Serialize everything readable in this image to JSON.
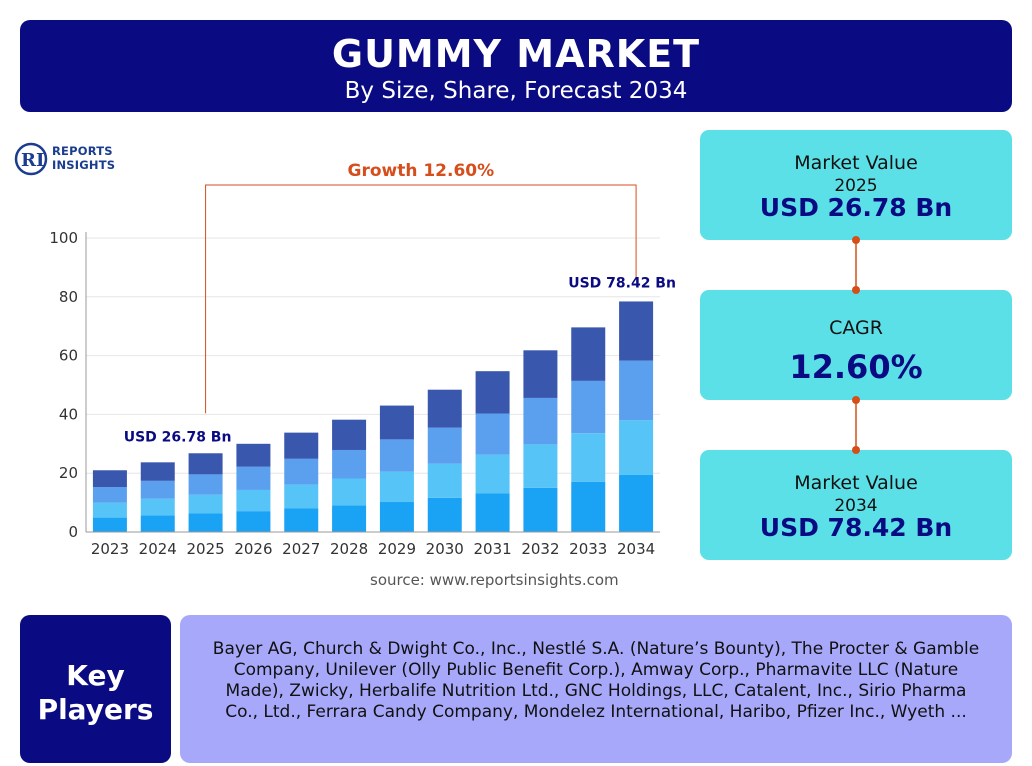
{
  "header": {
    "title": "GUMMY MARKET",
    "subtitle": "By Size, Share, Forecast 2034"
  },
  "logo": {
    "line1": "REPORTS",
    "line2": "INSIGHTS",
    "letters": "RI"
  },
  "chart_data": {
    "type": "bar",
    "stacked": true,
    "categories": [
      "2023",
      "2024",
      "2025",
      "2026",
      "2027",
      "2028",
      "2029",
      "2030",
      "2031",
      "2032",
      "2033",
      "2034"
    ],
    "totals": [
      21,
      23.7,
      26.78,
      30,
      33.8,
      38.2,
      43,
      48.4,
      54.7,
      61.8,
      69.6,
      78.42
    ],
    "series": [
      {
        "values": [
          4.9,
          5.6,
          6.3,
          7.1,
          8.0,
          9.0,
          10.2,
          11.6,
          13.2,
          15.0,
          17.1,
          19.4
        ],
        "color": "#1aa3f5"
      },
      {
        "values": [
          5.1,
          5.7,
          6.4,
          7.2,
          8.1,
          9.2,
          10.3,
          11.6,
          13.1,
          14.8,
          16.5,
          18.6
        ],
        "color": "#57c4f8"
      },
      {
        "values": [
          5.3,
          6.1,
          6.9,
          7.9,
          8.8,
          9.7,
          11.0,
          12.3,
          14.0,
          15.8,
          17.8,
          20.3
        ],
        "color": "#5aa0ef"
      },
      {
        "values": [
          5.7,
          6.3,
          7.18,
          7.8,
          8.9,
          10.3,
          11.5,
          12.9,
          14.4,
          16.2,
          18.2,
          20.12
        ],
        "color": "#3a57ae"
      }
    ],
    "ylim": [
      0,
      100
    ],
    "yticks": [
      0,
      20,
      40,
      60,
      80,
      100
    ],
    "grid": true,
    "annotations": {
      "growth_label": "Growth 12.60%",
      "label_2025": "USD 26.78 Bn",
      "label_2034": "USD 78.42 Bn"
    },
    "colors": {
      "growth": "#d64e1c",
      "label": "#0a0a82",
      "axis": "#999999",
      "grid": "#e6e6e6"
    }
  },
  "source": "source: www.reportsinsights.com",
  "cards": {
    "market_2025": {
      "label": "Market Value",
      "year": "2025",
      "value": "USD 26.78 Bn"
    },
    "cagr": {
      "label": "CAGR",
      "value": "12.60%"
    },
    "market_2034": {
      "label": "Market Value",
      "year": "2034",
      "value": "USD 78.42 Bn"
    }
  },
  "key_players": {
    "title_line1": "Key",
    "title_line2": "Players",
    "text": "Bayer AG, Church & Dwight Co., Inc., Nestlé S.A. (Nature’s Bounty), The Procter & Gamble Company, Unilever (Olly Public Benefit Corp.), Amway Corp., Pharmavite LLC (Nature Made), Zwicky, Herbalife Nutrition Ltd., GNC Holdings, LLC, Catalent, Inc., Sirio Pharma Co., Ltd., Ferrara Candy Company, Mondelez International, Haribo, Pfizer Inc., Wyeth ..."
  },
  "theme": {
    "navy": "#0a0a82",
    "cyan": "#5be0e8",
    "lavender": "#a7a8fa",
    "connector": "#d64e1c"
  }
}
